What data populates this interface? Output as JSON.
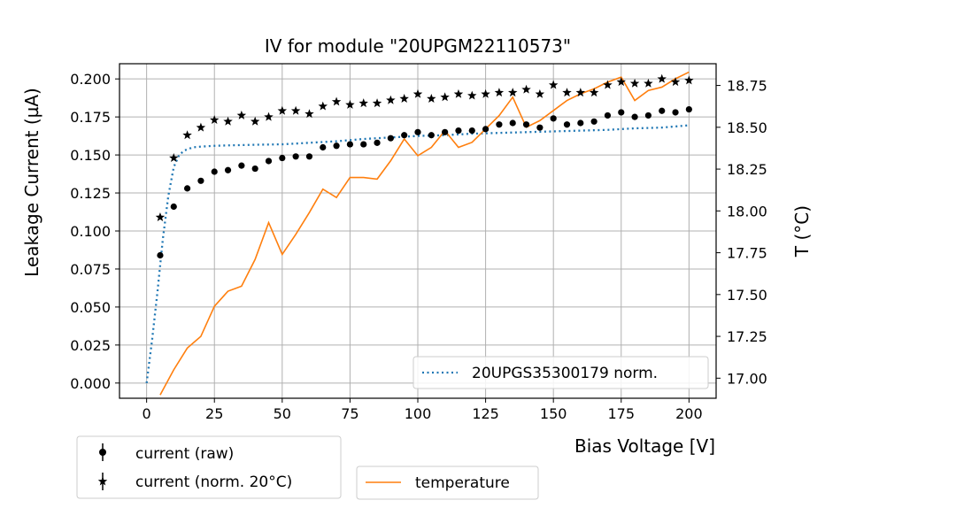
{
  "chart_data": {
    "type": "scatter",
    "title": "IV for module \"20UPGM22110573\"",
    "xlabel": "Bias Voltage [V]",
    "ylabel": "Leakage Current (µA)",
    "y2label": "T (°C)",
    "xlim": [
      -10,
      210
    ],
    "ylim": [
      -0.01,
      0.21
    ],
    "y2lim": [
      16.88,
      18.88
    ],
    "xticks": [
      0,
      25,
      50,
      75,
      100,
      125,
      150,
      175,
      200
    ],
    "xtick_labels": [
      "0",
      "25",
      "50",
      "75",
      "100",
      "125",
      "150",
      "175",
      "200"
    ],
    "yticks": [
      0.0,
      0.025,
      0.05,
      0.075,
      0.1,
      0.125,
      0.15,
      0.175,
      0.2
    ],
    "ytick_labels": [
      "0.000",
      "0.025",
      "0.050",
      "0.075",
      "0.100",
      "0.125",
      "0.150",
      "0.175",
      "0.200"
    ],
    "y2ticks": [
      17.0,
      17.25,
      17.5,
      17.75,
      18.0,
      18.25,
      18.5,
      18.75
    ],
    "y2tick_labels": [
      "17.00",
      "17.25",
      "17.50",
      "17.75",
      "18.00",
      "18.25",
      "18.50",
      "18.75"
    ],
    "grid": true,
    "x": [
      5,
      10,
      15,
      20,
      25,
      30,
      35,
      40,
      45,
      50,
      55,
      60,
      65,
      70,
      75,
      80,
      85,
      90,
      95,
      100,
      105,
      110,
      115,
      120,
      125,
      130,
      135,
      140,
      145,
      150,
      155,
      160,
      165,
      170,
      175,
      180,
      185,
      190,
      195,
      200
    ],
    "series": [
      {
        "name": "current (raw)",
        "axis": "left",
        "marker": "circle",
        "color": "#000000",
        "values": [
          0.084,
          0.116,
          0.128,
          0.133,
          0.139,
          0.14,
          0.143,
          0.141,
          0.146,
          0.148,
          0.149,
          0.149,
          0.155,
          0.156,
          0.157,
          0.157,
          0.158,
          0.161,
          0.163,
          0.165,
          0.163,
          0.165,
          0.166,
          0.166,
          0.167,
          0.17,
          0.171,
          0.17,
          0.168,
          0.174,
          0.17,
          0.171,
          0.172,
          0.176,
          0.178,
          0.175,
          0.176,
          0.179,
          0.178,
          0.18
        ]
      },
      {
        "name": "current (norm. 20°C)",
        "axis": "left",
        "marker": "star",
        "color": "#000000",
        "values": [
          0.109,
          0.148,
          0.163,
          0.168,
          0.173,
          0.172,
          0.176,
          0.172,
          0.175,
          0.179,
          0.179,
          0.177,
          0.182,
          0.185,
          0.183,
          0.184,
          0.184,
          0.186,
          0.187,
          0.19,
          0.187,
          0.188,
          0.19,
          0.189,
          0.19,
          0.191,
          0.191,
          0.193,
          0.19,
          0.196,
          0.191,
          0.191,
          0.191,
          0.196,
          0.198,
          0.197,
          0.197,
          0.2,
          0.198,
          0.199
        ]
      },
      {
        "name": "temperature",
        "axis": "right",
        "style": "line",
        "color": "#ff7f0e",
        "values": [
          16.9,
          17.05,
          17.18,
          17.25,
          17.43,
          17.52,
          17.55,
          17.71,
          17.93,
          17.74,
          17.86,
          17.99,
          18.13,
          18.08,
          18.2,
          18.2,
          18.19,
          18.3,
          18.43,
          18.33,
          18.38,
          18.48,
          18.38,
          18.41,
          18.49,
          18.57,
          18.68,
          18.5,
          18.54,
          18.6,
          18.66,
          18.7,
          18.73,
          18.77,
          18.8,
          18.66,
          18.72,
          18.74,
          18.79,
          18.83
        ]
      },
      {
        "name": "20UPGS35300179 norm.",
        "axis": "left",
        "style": "dotted",
        "color": "#1f77b4",
        "x": [
          0,
          2,
          4,
          6,
          8,
          10,
          12,
          14,
          17,
          20,
          25,
          30,
          40,
          50,
          60,
          70,
          80,
          90,
          100,
          110,
          120,
          130,
          140,
          150,
          160,
          170,
          180,
          190,
          200
        ],
        "values": [
          0.0,
          0.028,
          0.06,
          0.095,
          0.123,
          0.142,
          0.15,
          0.153,
          0.155,
          0.1555,
          0.156,
          0.1563,
          0.1567,
          0.157,
          0.158,
          0.159,
          0.1605,
          0.1615,
          0.1625,
          0.163,
          0.164,
          0.1645,
          0.165,
          0.1655,
          0.166,
          0.1665,
          0.1675,
          0.168,
          0.1695
        ]
      }
    ],
    "legend_dotted": "20UPGS35300179 norm.",
    "legend_raw": "current (raw)",
    "legend_norm": "current (norm. 20°C)",
    "legend_temp": "temperature"
  },
  "colors": {
    "temperature": "#ff7f0e",
    "reference": "#1f77b4",
    "markers": "#000000",
    "grid": "#b0b0b0"
  }
}
